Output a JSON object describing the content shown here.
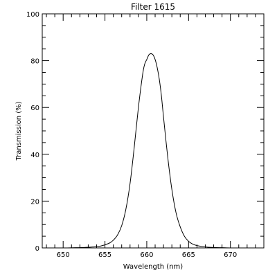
{
  "chart_data": {
    "type": "line",
    "title": "Filter 1615",
    "xlabel": "Wavelength (nm)",
    "ylabel": "Transmission (%)",
    "xlim": [
      647.5,
      674.0
    ],
    "ylim": [
      0,
      100
    ],
    "xticks": [
      650,
      655,
      660,
      665,
      670
    ],
    "xtick_labels": [
      "650",
      "655",
      "660",
      "665",
      "670"
    ],
    "yticks": [
      0,
      20,
      40,
      60,
      80,
      100
    ],
    "ytick_labels": [
      "0",
      "20",
      "40",
      "60",
      "80",
      "100"
    ],
    "x_minor_step": 1,
    "y_minor_step": 5,
    "grid": false,
    "legend": "none",
    "line_color": "#000000",
    "series": [
      {
        "x": [
          650.5,
          651.5,
          652.5,
          653.5,
          654.5,
          655.5,
          656.0,
          656.5,
          657.0,
          657.5,
          658.0,
          658.5,
          659.0,
          659.5,
          659.75,
          660.0,
          660.25,
          660.5,
          660.75,
          661.0,
          661.25,
          661.5,
          661.75,
          662.0,
          662.5,
          663.0,
          663.5,
          664.0,
          664.5,
          665.0,
          665.5,
          666.0,
          667.0,
          668.0,
          669.0,
          670.0,
          671.0,
          671.5
        ],
        "y": [
          0.0,
          0.1,
          0.2,
          0.4,
          0.8,
          2.0,
          3.3,
          5.5,
          9.5,
          16.5,
          27.5,
          43.0,
          60.0,
          74.0,
          78.5,
          80.5,
          82.5,
          83.0,
          82.5,
          80.5,
          77.0,
          72.0,
          65.0,
          56.0,
          39.0,
          25.0,
          15.0,
          9.0,
          5.0,
          2.8,
          1.6,
          1.0,
          0.4,
          0.2,
          0.1,
          0.0,
          0.0,
          0.0
        ]
      }
    ]
  }
}
